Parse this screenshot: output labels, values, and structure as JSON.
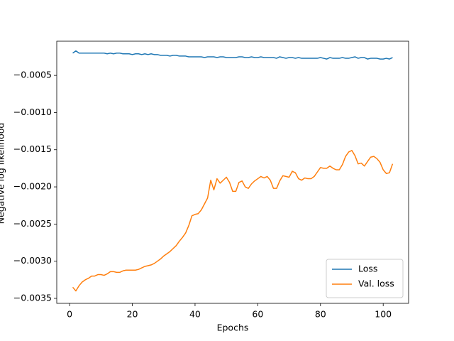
{
  "chart_data": {
    "type": "line",
    "x_label": "Epochs",
    "y_label": "Negative log likelihood",
    "xlim": [
      -4.1,
      108.1
    ],
    "ylim": [
      -0.003567,
      -4e-05
    ],
    "xticks": [
      0,
      20,
      40,
      60,
      80,
      100
    ],
    "yticks": [
      {
        "value": -0.0035,
        "label": "−0.0035"
      },
      {
        "value": -0.003,
        "label": "−0.0030"
      },
      {
        "value": -0.0025,
        "label": "−0.0025"
      },
      {
        "value": -0.002,
        "label": "−0.0020"
      },
      {
        "value": -0.0015,
        "label": "−0.0015"
      },
      {
        "value": -0.001,
        "label": "−0.0010"
      },
      {
        "value": -0.0005,
        "label": "−0.0005"
      }
    ],
    "grid": false,
    "legend_position": "lower-right",
    "x": [
      1,
      2,
      3,
      4,
      5,
      6,
      7,
      8,
      9,
      10,
      11,
      12,
      13,
      14,
      15,
      16,
      17,
      18,
      19,
      20,
      21,
      22,
      23,
      24,
      25,
      26,
      27,
      28,
      29,
      30,
      31,
      32,
      33,
      34,
      35,
      36,
      37,
      38,
      39,
      40,
      41,
      42,
      43,
      44,
      45,
      46,
      47,
      48,
      49,
      50,
      51,
      52,
      53,
      54,
      55,
      56,
      57,
      58,
      59,
      60,
      61,
      62,
      63,
      64,
      65,
      66,
      67,
      68,
      69,
      70,
      71,
      72,
      73,
      74,
      75,
      76,
      77,
      78,
      79,
      80,
      81,
      82,
      83,
      84,
      85,
      86,
      87,
      88,
      89,
      90,
      91,
      92,
      93,
      94,
      95,
      96,
      97,
      98,
      99,
      100,
      101,
      102,
      103
    ],
    "series": [
      {
        "name": "Loss",
        "color": "#1f77b4",
        "values": [
          -0.0002,
          -0.00017,
          -0.0002,
          -0.0002,
          -0.0002,
          -0.0002,
          -0.0002,
          -0.0002,
          -0.0002,
          -0.0002,
          -0.0002,
          -0.00021,
          -0.0002,
          -0.00021,
          -0.0002,
          -0.0002,
          -0.00021,
          -0.00021,
          -0.00021,
          -0.00022,
          -0.00021,
          -0.00021,
          -0.00022,
          -0.00021,
          -0.00022,
          -0.00021,
          -0.00022,
          -0.00022,
          -0.00023,
          -0.00023,
          -0.00023,
          -0.00024,
          -0.00023,
          -0.00023,
          -0.00024,
          -0.00024,
          -0.00024,
          -0.00025,
          -0.00025,
          -0.00025,
          -0.00025,
          -0.00025,
          -0.00026,
          -0.00025,
          -0.00025,
          -0.00025,
          -0.00026,
          -0.00025,
          -0.00025,
          -0.00026,
          -0.00026,
          -0.00026,
          -0.00026,
          -0.00025,
          -0.00025,
          -0.00026,
          -0.00026,
          -0.00025,
          -0.00026,
          -0.00026,
          -0.00025,
          -0.00026,
          -0.00026,
          -0.00026,
          -0.00026,
          -0.00027,
          -0.00025,
          -0.00026,
          -0.00027,
          -0.00026,
          -0.00026,
          -0.00027,
          -0.00026,
          -0.00027,
          -0.00027,
          -0.00027,
          -0.00027,
          -0.00027,
          -0.00027,
          -0.00026,
          -0.00027,
          -0.00028,
          -0.00026,
          -0.00027,
          -0.00027,
          -0.00027,
          -0.00026,
          -0.00027,
          -0.00027,
          -0.00026,
          -0.00025,
          -0.00027,
          -0.00026,
          -0.00026,
          -0.00028,
          -0.00027,
          -0.00027,
          -0.00027,
          -0.00028,
          -0.00028,
          -0.00027,
          -0.00028,
          -0.00026
        ]
      },
      {
        "name": "Val. loss",
        "color": "#ff7f0e",
        "values": [
          -0.00335,
          -0.0034,
          -0.00333,
          -0.00328,
          -0.00325,
          -0.00323,
          -0.0032,
          -0.0032,
          -0.00318,
          -0.00318,
          -0.00319,
          -0.00317,
          -0.00314,
          -0.00314,
          -0.00315,
          -0.00315,
          -0.00313,
          -0.00312,
          -0.00312,
          -0.00312,
          -0.00312,
          -0.00311,
          -0.00309,
          -0.00307,
          -0.00306,
          -0.00305,
          -0.00303,
          -0.003,
          -0.00297,
          -0.00293,
          -0.0029,
          -0.00287,
          -0.00283,
          -0.00279,
          -0.00273,
          -0.00268,
          -0.00262,
          -0.00252,
          -0.00239,
          -0.00237,
          -0.00236,
          -0.00231,
          -0.00223,
          -0.00215,
          -0.00191,
          -0.00204,
          -0.00189,
          -0.00195,
          -0.00191,
          -0.00187,
          -0.00194,
          -0.00206,
          -0.00206,
          -0.00194,
          -0.00192,
          -0.002,
          -0.00202,
          -0.00196,
          -0.00192,
          -0.00189,
          -0.00186,
          -0.00188,
          -0.00186,
          -0.00191,
          -0.00202,
          -0.00202,
          -0.00192,
          -0.00185,
          -0.00186,
          -0.00187,
          -0.00179,
          -0.00181,
          -0.00189,
          -0.00191,
          -0.00188,
          -0.00189,
          -0.00189,
          -0.00186,
          -0.0018,
          -0.00174,
          -0.00175,
          -0.00175,
          -0.00172,
          -0.00175,
          -0.00177,
          -0.00177,
          -0.0017,
          -0.00159,
          -0.00153,
          -0.00151,
          -0.00158,
          -0.00169,
          -0.00168,
          -0.00172,
          -0.00166,
          -0.0016,
          -0.00159,
          -0.00162,
          -0.00167,
          -0.00177,
          -0.00182,
          -0.00181,
          -0.00169
        ]
      }
    ]
  }
}
